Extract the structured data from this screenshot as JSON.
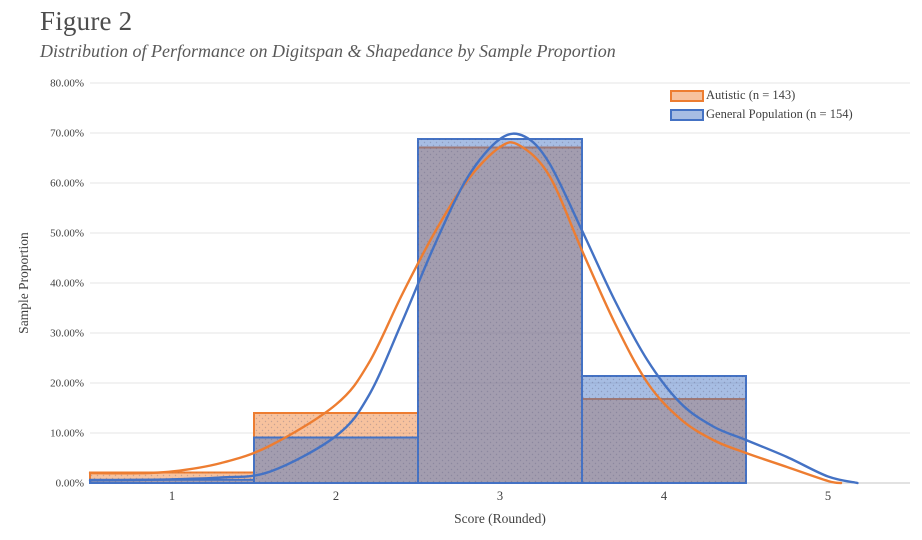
{
  "figure": {
    "title": "Figure 2",
    "subtitle": "Distribution of Performance on Digitspan & Shapedance by Sample Proportion"
  },
  "colors": {
    "autistic_line": "#ED7D31",
    "general_line": "#4472C4",
    "gridline": "#E4E4E4",
    "axis_line": "#C6C6C6",
    "tick_text": "#404040",
    "title_text": "#4D4D4D"
  },
  "chart_data": {
    "type": "bar",
    "subtype": "overlaid-histogram-with-density-curves",
    "title": "Figure 2",
    "subtitle": "Distribution of Performance on Digitspan & Shapedance by Sample Proportion",
    "xlabel": "Score (Rounded)",
    "ylabel": "Sample Proportion",
    "categories": [
      "1",
      "2",
      "3",
      "4",
      "5"
    ],
    "ylim": [
      0,
      80
    ],
    "ytick_step": 10,
    "ytick_labels": [
      "0.00%",
      "10.00%",
      "20.00%",
      "30.00%",
      "40.00%",
      "50.00%",
      "60.00%",
      "70.00%",
      "80.00%"
    ],
    "grid": true,
    "legend_position": "top-right",
    "series": [
      {
        "name": "Autistic (n = 143)",
        "color": "#ED7D31",
        "fill_opacity": 0.47,
        "bar_values_pct": [
          2.1,
          14.0,
          67.1,
          16.8,
          0
        ],
        "curve_points": [
          [
            0.5,
            2.0
          ],
          [
            0.75,
            1.95
          ],
          [
            1.0,
            2.3
          ],
          [
            1.3,
            4.0
          ],
          [
            1.6,
            7.5
          ],
          [
            2.0,
            15.7
          ],
          [
            2.2,
            24.0
          ],
          [
            2.4,
            37.5
          ],
          [
            2.6,
            50.0
          ],
          [
            2.8,
            60.5
          ],
          [
            3.0,
            67.2
          ],
          [
            3.12,
            67.5
          ],
          [
            3.3,
            61.5
          ],
          [
            3.5,
            46.5
          ],
          [
            3.7,
            32.0
          ],
          [
            3.9,
            20.0
          ],
          [
            4.1,
            12.8
          ],
          [
            4.3,
            8.6
          ],
          [
            4.5,
            6.0
          ],
          [
            4.75,
            3.2
          ],
          [
            5.0,
            0.4
          ],
          [
            5.08,
            0.0
          ]
        ]
      },
      {
        "name": "General Population (n = 154)",
        "color": "#4472C4",
        "fill_opacity": 0.47,
        "bar_values_pct": [
          0.65,
          9.1,
          68.8,
          21.4,
          0
        ],
        "curve_points": [
          [
            0.5,
            0.55
          ],
          [
            0.75,
            0.6
          ],
          [
            1.0,
            0.75
          ],
          [
            1.3,
            1.1
          ],
          [
            1.6,
            2.3
          ],
          [
            2.0,
            9.4
          ],
          [
            2.2,
            17.5
          ],
          [
            2.4,
            32.0
          ],
          [
            2.6,
            47.5
          ],
          [
            2.8,
            61.0
          ],
          [
            3.0,
            68.8
          ],
          [
            3.15,
            69.3
          ],
          [
            3.3,
            64.0
          ],
          [
            3.5,
            50.5
          ],
          [
            3.7,
            36.5
          ],
          [
            3.9,
            24.5
          ],
          [
            4.1,
            16.0
          ],
          [
            4.3,
            11.3
          ],
          [
            4.5,
            8.6
          ],
          [
            4.75,
            5.2
          ],
          [
            5.0,
            1.3
          ],
          [
            5.18,
            0.0
          ]
        ]
      }
    ]
  }
}
